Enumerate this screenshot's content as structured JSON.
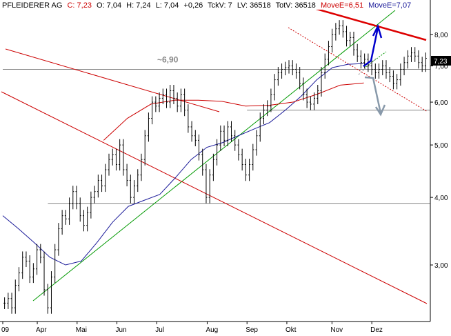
{
  "header": {
    "name": "PFLEIDERER AG",
    "c": "C: 7,23",
    "o": "O: 7,04",
    "h": "H: 7,24",
    "l": "L: 7,04",
    "chg": "+0,26",
    "tckv": "TckV: 7",
    "lv": "LV: 36518",
    "totv": "TotV: 36518",
    "move1": "MoveE=6,51",
    "move2": "MoveE=7,07"
  },
  "colors": {
    "price": "#000000",
    "ma_red": "#cc0000",
    "ma_blue": "#1a1a99",
    "trend_green": "#009900",
    "trend_red": "#cc0000",
    "horizontal": "#808080",
    "arrow_up": "#0000cc",
    "arrow_down": "#8899aa",
    "last_price_bg": "#000000"
  },
  "chart_data": {
    "type": "ohlc",
    "title": "PFLEIDERER AG",
    "scale": "log",
    "ylim": [
      2.4,
      9.0
    ],
    "y_ticks": [
      {
        "value": 3.0,
        "label": "3,00"
      },
      {
        "value": 4.0,
        "label": "4,00"
      },
      {
        "value": 5.0,
        "label": "5,00"
      },
      {
        "value": 6.0,
        "label": "6,00"
      },
      {
        "value": 7.0,
        "label": "7,00"
      },
      {
        "value": 8.0,
        "label": "8,00"
      }
    ],
    "last_price": {
      "value": 7.23,
      "label": "7,23"
    },
    "x_labels": [
      "09",
      "Apr",
      "Mai",
      "Jun",
      "Jul",
      "Aug",
      "Sep",
      "Okt",
      "Nov",
      "Dez"
    ],
    "x_label_pos": [
      0,
      13,
      28,
      43,
      58,
      77,
      92,
      107,
      124,
      139
    ],
    "n_days": 160,
    "closes": [
      2.55,
      2.6,
      2.5,
      2.75,
      2.9,
      3.1,
      3.05,
      2.85,
      2.95,
      3.2,
      3.1,
      2.7,
      2.5,
      2.85,
      3.2,
      3.5,
      3.7,
      3.65,
      3.9,
      4.1,
      3.9,
      3.7,
      3.55,
      3.75,
      4.0,
      4.1,
      4.3,
      4.2,
      4.5,
      4.7,
      4.8,
      4.6,
      5.0,
      4.5,
      4.3,
      4.0,
      4.2,
      4.4,
      4.7,
      5.2,
      5.6,
      6.0,
      5.9,
      6.1,
      6.2,
      6.0,
      6.3,
      6.1,
      5.9,
      6.2,
      5.8,
      5.4,
      5.2,
      5.1,
      4.8,
      4.5,
      4.0,
      4.4,
      4.7,
      5.0,
      5.3,
      5.1,
      5.4,
      5.2,
      5.0,
      4.8,
      4.6,
      4.4,
      4.6,
      4.9,
      5.2,
      5.6,
      5.8,
      5.9,
      6.2,
      6.6,
      6.8,
      6.9,
      6.95,
      7.0,
      6.9,
      6.8,
      6.5,
      6.2,
      6.0,
      5.95,
      6.1,
      6.3,
      6.8,
      7.2,
      7.6,
      8.0,
      8.2,
      8.3,
      8.1,
      7.8,
      7.9,
      7.5,
      7.3,
      7.1,
      7.2,
      7.0,
      6.9,
      6.8,
      6.9,
      7.0,
      6.8,
      6.7,
      6.5,
      6.6,
      6.9,
      7.1,
      7.3,
      7.4,
      7.3,
      7.1,
      7.0,
      7.23
    ],
    "ma_blue": [
      3.7,
      3.5,
      3.3,
      3.1,
      3.0,
      3.05,
      3.3,
      3.6,
      3.85,
      3.95,
      4.05,
      4.35,
      4.7,
      4.95,
      5.05,
      5.2,
      5.35,
      5.5,
      5.8,
      6.15,
      6.6,
      6.95,
      7.05,
      7.07
    ],
    "ma_red": [
      5.1,
      5.6,
      5.95,
      6.05,
      6.05,
      6.02,
      5.9,
      5.92,
      6.0,
      6.2,
      6.45,
      6.51
    ],
    "horizontal_levels": [
      {
        "value": 3.9,
        "x_start": 17
      },
      {
        "value": 5.8,
        "x_start": 92
      },
      {
        "value": 6.9,
        "x_start": 0
      }
    ],
    "annotations": [
      {
        "text": "~6,90",
        "value": 6.9
      }
    ]
  }
}
